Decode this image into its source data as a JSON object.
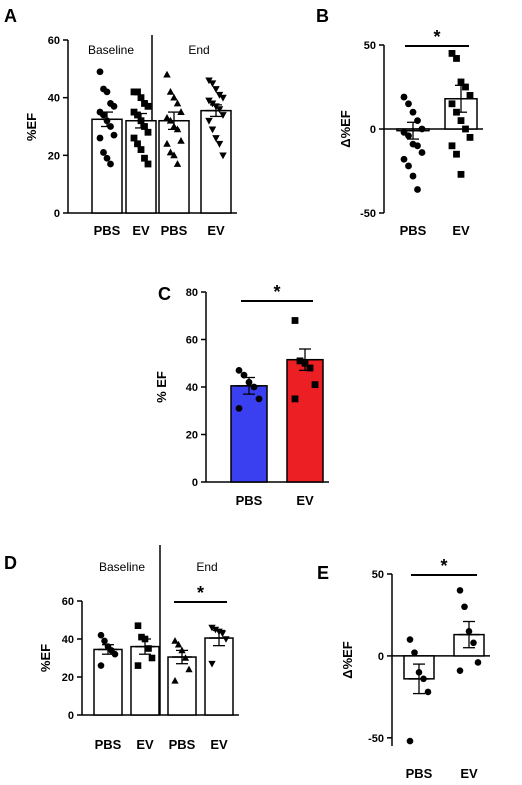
{
  "chart_data": [
    {
      "panel": "A",
      "type": "bar",
      "ylabel": "%EF",
      "ylim": [
        0,
        60
      ],
      "yticks": [
        0,
        20,
        40,
        60
      ],
      "categories": [
        "PBS",
        "EV",
        "PBS",
        "EV"
      ],
      "groups": [
        "Baseline",
        "End"
      ],
      "bar_fill": [
        "#ffffff",
        "#ffffff",
        "#ffffff",
        "#ffffff"
      ],
      "markers": [
        "circle",
        "square",
        "triangle",
        "triangle-down"
      ],
      "values": [
        32.5,
        32,
        32,
        35.5
      ],
      "sem": [
        2.5,
        2.5,
        3,
        2
      ],
      "points": [
        [
          49,
          43,
          42,
          38,
          37,
          35,
          34,
          32,
          30,
          27,
          26,
          21,
          19,
          17
        ],
        [
          42,
          42,
          40,
          38,
          37,
          35,
          34,
          32,
          30,
          28,
          26,
          24,
          22,
          19,
          17
        ],
        [
          48,
          42,
          40,
          38,
          35,
          33,
          32,
          30,
          29,
          25,
          24,
          21,
          20,
          17
        ],
        [
          46,
          45,
          43,
          41,
          40,
          39,
          38,
          37,
          36,
          34,
          32,
          29,
          26,
          24,
          20
        ]
      ],
      "significance": []
    },
    {
      "panel": "B",
      "type": "bar",
      "ylabel": "Δ%EF",
      "ylim": [
        -50,
        50
      ],
      "yticks": [
        -50,
        0,
        50
      ],
      "categories": [
        "PBS",
        "EV"
      ],
      "groups": [],
      "bar_fill": [
        "#ffffff",
        "#ffffff"
      ],
      "markers": [
        "circle",
        "square"
      ],
      "values": [
        -1,
        18
      ],
      "sem": [
        5,
        8
      ],
      "points": [
        [
          19,
          15,
          10,
          5,
          0,
          -2,
          -4,
          -9,
          -10,
          -14,
          -18,
          -22,
          -28,
          -36
        ],
        [
          45,
          42,
          28,
          25,
          20,
          15,
          10,
          5,
          0,
          -5,
          -10,
          -15,
          -27
        ]
      ],
      "significance": [
        {
          "from": 0,
          "to": 1,
          "label": "*"
        }
      ]
    },
    {
      "panel": "C",
      "type": "bar",
      "ylabel": "% EF",
      "ylim": [
        0,
        80
      ],
      "yticks": [
        0,
        20,
        40,
        60,
        80
      ],
      "categories": [
        "PBS",
        "EV"
      ],
      "groups": [],
      "bar_fill": [
        "#3a3ff0",
        "#ec1f24"
      ],
      "markers": [
        "circle",
        "square"
      ],
      "values": [
        40.5,
        51.5
      ],
      "sem": [
        3.5,
        4.5
      ],
      "points": [
        [
          47,
          45,
          42,
          40,
          35,
          31
        ],
        [
          68,
          51,
          50,
          48,
          41,
          35
        ]
      ],
      "significance": [
        {
          "from": 0,
          "to": 1,
          "label": "*"
        }
      ]
    },
    {
      "panel": "D",
      "type": "bar",
      "ylabel": "%EF",
      "ylim": [
        0,
        60
      ],
      "yticks": [
        0,
        20,
        40,
        60
      ],
      "categories": [
        "PBS",
        "EV",
        "PBS",
        "EV"
      ],
      "groups": [
        "Baseline",
        "End"
      ],
      "bar_fill": [
        "#ffffff",
        "#ffffff",
        "#ffffff",
        "#ffffff"
      ],
      "markers": [
        "circle",
        "square",
        "triangle",
        "triangle-down"
      ],
      "values": [
        34.5,
        36,
        30.5,
        40.5
      ],
      "sem": [
        2.5,
        4,
        3.5,
        4
      ],
      "points": [
        [
          42,
          39,
          36,
          34,
          32,
          26
        ],
        [
          47,
          41,
          40,
          35,
          30,
          26
        ],
        [
          39,
          37,
          34,
          30,
          24,
          18
        ],
        [
          46,
          45,
          44,
          43,
          40,
          27
        ]
      ],
      "significance": [
        {
          "from": 2,
          "to": 3,
          "label": "*"
        }
      ]
    },
    {
      "panel": "E",
      "type": "bar",
      "ylabel": "Δ%EF",
      "ylim": [
        -55,
        50
      ],
      "yticks": [
        -50,
        0,
        50
      ],
      "categories": [
        "PBS",
        "EV"
      ],
      "groups": [],
      "bar_fill": [
        "#ffffff",
        "#ffffff"
      ],
      "markers": [
        "circle",
        "circle"
      ],
      "values": [
        -14,
        13
      ],
      "sem": [
        9,
        8
      ],
      "points": [
        [
          10,
          2,
          -10,
          -14,
          -22,
          -52
        ],
        [
          40,
          30,
          15,
          8,
          -4,
          -9
        ]
      ],
      "significance": [
        {
          "from": 0,
          "to": 1,
          "label": "*"
        }
      ]
    }
  ]
}
